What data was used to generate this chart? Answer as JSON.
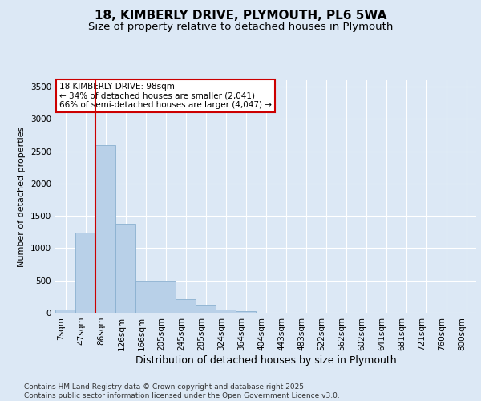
{
  "title": "18, KIMBERLY DRIVE, PLYMOUTH, PL6 5WA",
  "subtitle": "Size of property relative to detached houses in Plymouth",
  "xlabel": "Distribution of detached houses by size in Plymouth",
  "ylabel": "Number of detached properties",
  "categories": [
    "7sqm",
    "47sqm",
    "86sqm",
    "126sqm",
    "166sqm",
    "205sqm",
    "245sqm",
    "285sqm",
    "324sqm",
    "364sqm",
    "404sqm",
    "443sqm",
    "483sqm",
    "522sqm",
    "562sqm",
    "602sqm",
    "641sqm",
    "681sqm",
    "721sqm",
    "760sqm",
    "800sqm"
  ],
  "values": [
    50,
    1240,
    2600,
    1380,
    500,
    500,
    210,
    120,
    50,
    25,
    0,
    0,
    0,
    0,
    0,
    0,
    0,
    0,
    0,
    0,
    0
  ],
  "bar_color": "#b8d0e8",
  "bar_edgecolor": "#8ab0d0",
  "vline_color": "#cc0000",
  "annotation_text": "18 KIMBERLY DRIVE: 98sqm\n← 34% of detached houses are smaller (2,041)\n66% of semi-detached houses are larger (4,047) →",
  "annotation_box_edgecolor": "#cc0000",
  "annotation_box_facecolor": "#ffffff",
  "ylim": [
    0,
    3600
  ],
  "yticks": [
    0,
    500,
    1000,
    1500,
    2000,
    2500,
    3000,
    3500
  ],
  "background_color": "#dce8f5",
  "plot_bg_color": "#dce8f5",
  "grid_color": "#ffffff",
  "footer": "Contains HM Land Registry data © Crown copyright and database right 2025.\nContains public sector information licensed under the Open Government Licence v3.0.",
  "title_fontsize": 11,
  "subtitle_fontsize": 9.5,
  "xlabel_fontsize": 9,
  "ylabel_fontsize": 8,
  "tick_fontsize": 7.5,
  "footer_fontsize": 6.5
}
